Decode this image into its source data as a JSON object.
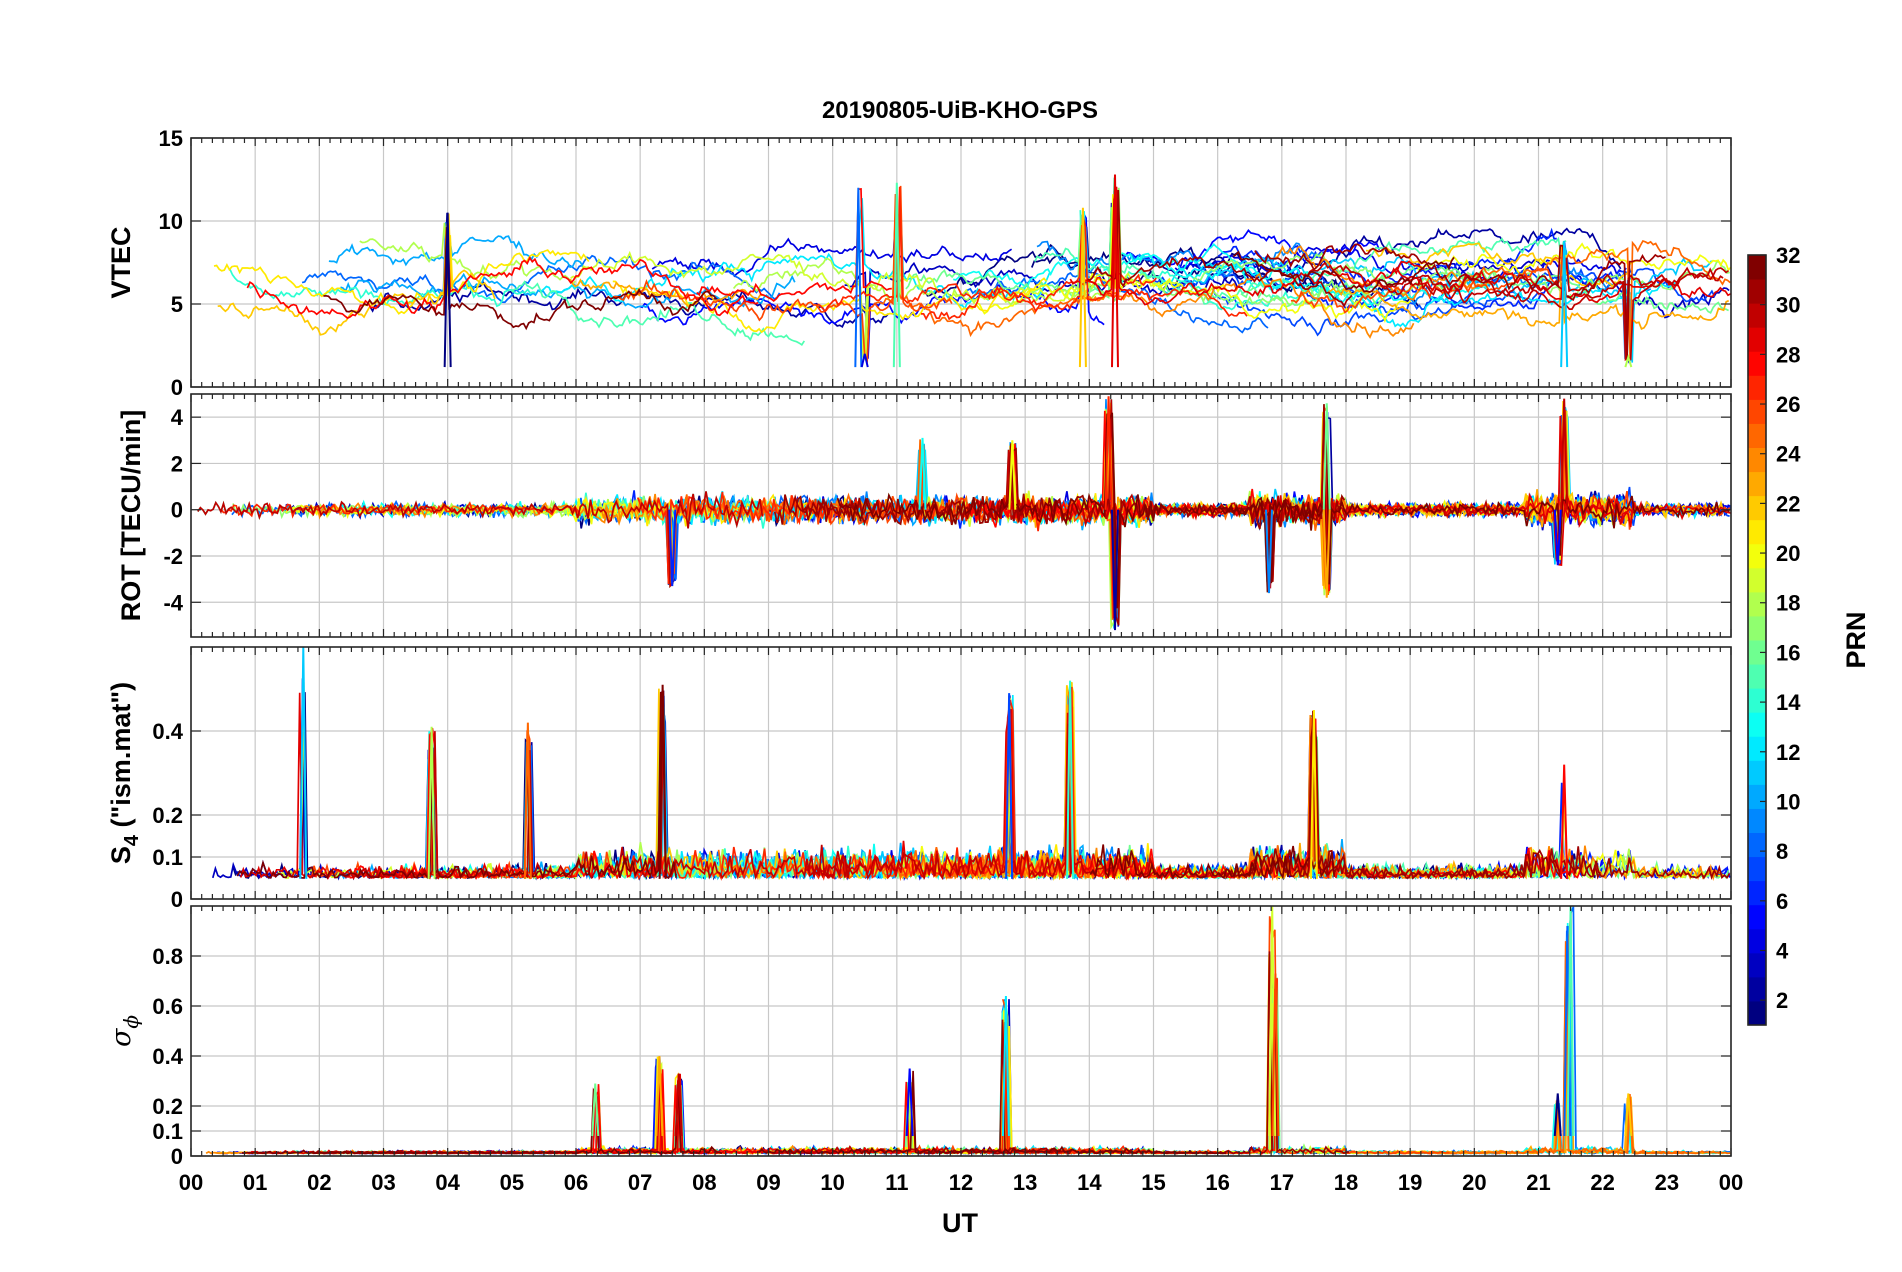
{
  "chart_data": {
    "type": "line",
    "title": "20190805-UiB-KHO-GPS",
    "xlabel": "UT",
    "x_ticks": [
      "00",
      "01",
      "02",
      "03",
      "04",
      "05",
      "06",
      "07",
      "08",
      "09",
      "10",
      "11",
      "12",
      "13",
      "14",
      "15",
      "16",
      "17",
      "18",
      "19",
      "20",
      "21",
      "22",
      "23",
      "00"
    ],
    "x_range_hours": [
      0,
      24
    ],
    "colorbar": {
      "label": "PRN",
      "range": [
        1,
        32
      ],
      "ticks": [
        "2",
        "4",
        "6",
        "8",
        "10",
        "12",
        "14",
        "16",
        "18",
        "20",
        "22",
        "24",
        "26",
        "28",
        "30",
        "32"
      ],
      "colormap": "jet"
    },
    "panels": [
      {
        "name": "vtec",
        "ylabel": "VTEC",
        "ylim": [
          0,
          15
        ],
        "yticks": [
          0,
          5,
          10,
          15
        ],
        "ytick_labels": [
          "0",
          "5",
          "10",
          "15"
        ],
        "description_values": {
          "baseline_range": [
            5,
            8
          ],
          "max_spike": 12.8,
          "min_dip": 1.8
        },
        "events": [
          {
            "t": 4.0,
            "v": 10.5
          },
          {
            "t": 10.4,
            "v": 12.0
          },
          {
            "t": 11.0,
            "v": 12.3
          },
          {
            "t": 13.9,
            "v": 10.8
          },
          {
            "t": 14.4,
            "v": 12.8
          },
          {
            "t": 10.5,
            "v": 2.0
          },
          {
            "t": 21.4,
            "v": 8.8
          },
          {
            "t": 22.4,
            "v": 1.8
          }
        ]
      },
      {
        "name": "rot",
        "ylabel": "ROT [TECU/min]",
        "ylim": [
          -5.5,
          5
        ],
        "yticks": [
          -4,
          -2,
          0,
          2,
          4
        ],
        "ytick_labels": [
          "-4",
          "-2",
          "0",
          "2",
          "4"
        ],
        "events": [
          {
            "t": 7.5,
            "v": -3.3
          },
          {
            "t": 11.4,
            "v": 3.1
          },
          {
            "t": 12.8,
            "v": 3.0
          },
          {
            "t": 14.3,
            "v": 4.9
          },
          {
            "t": 14.4,
            "v": -5.2
          },
          {
            "t": 16.8,
            "v": -3.6
          },
          {
            "t": 17.7,
            "v": 4.6
          },
          {
            "t": 17.7,
            "v": -3.8
          },
          {
            "t": 21.4,
            "v": 4.8
          },
          {
            "t": 21.3,
            "v": -2.4
          }
        ]
      },
      {
        "name": "s4",
        "ylabel": "S4 (\"ism.mat\")",
        "ylabel_main": "S",
        "ylabel_sub": "4",
        "ylabel_rest": " (\"ism.mat\")",
        "ylim": [
          0,
          0.6
        ],
        "yticks": [
          0,
          0.1,
          0.2,
          0.4
        ],
        "ytick_labels": [
          "0",
          "0.1",
          "0.2",
          "0.4"
        ],
        "events": [
          {
            "t": 1.75,
            "v": 0.6
          },
          {
            "t": 3.75,
            "v": 0.41
          },
          {
            "t": 5.25,
            "v": 0.42
          },
          {
            "t": 7.35,
            "v": 0.51
          },
          {
            "t": 12.75,
            "v": 0.49
          },
          {
            "t": 13.7,
            "v": 0.52
          },
          {
            "t": 17.5,
            "v": 0.45
          },
          {
            "t": 21.4,
            "v": 0.32
          }
        ]
      },
      {
        "name": "sigma_phi",
        "ylabel": "σ ϕ",
        "ylabel_main": "σ",
        "ylabel_sub": "ϕ",
        "ylim": [
          0,
          1
        ],
        "yticks": [
          0,
          0.1,
          0.2,
          0.4,
          0.6,
          0.8
        ],
        "ytick_labels": [
          "0",
          "0.1",
          "0.2",
          "0.4",
          "0.6",
          "0.8"
        ],
        "events": [
          {
            "t": 6.3,
            "v": 0.29
          },
          {
            "t": 7.3,
            "v": 0.4
          },
          {
            "t": 7.6,
            "v": 0.33
          },
          {
            "t": 11.2,
            "v": 0.35
          },
          {
            "t": 12.7,
            "v": 0.64
          },
          {
            "t": 16.85,
            "v": 1.0
          },
          {
            "t": 16.9,
            "v": 0.73
          },
          {
            "t": 21.3,
            "v": 0.25
          },
          {
            "t": 21.45,
            "v": 0.92
          },
          {
            "t": 21.5,
            "v": 1.0
          },
          {
            "t": 22.4,
            "v": 0.25
          }
        ]
      }
    ],
    "num_satellites": 32
  }
}
